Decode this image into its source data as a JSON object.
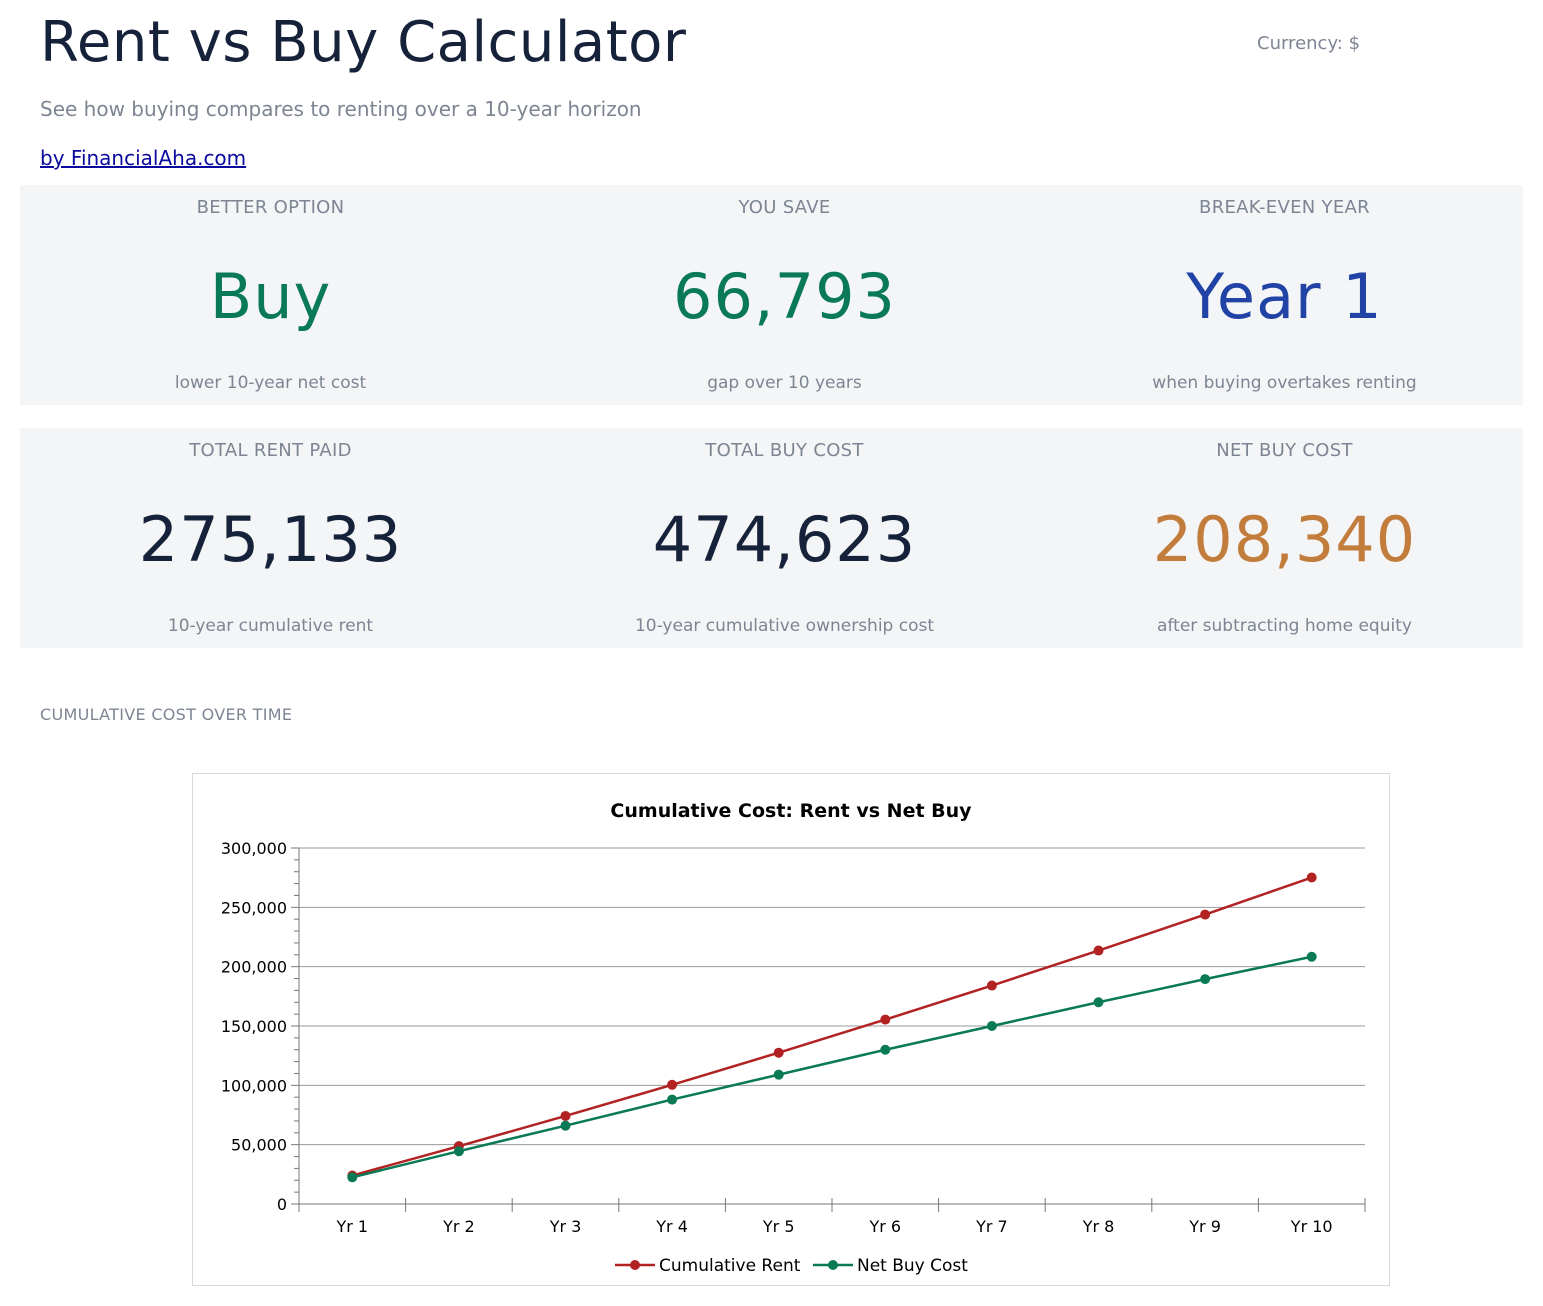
{
  "header": {
    "title": "Rent vs Buy Calculator",
    "currency": "Currency: $",
    "subtitle": "See how buying compares to renting over a 10-year horizon",
    "byline": "by FinancialAha.com"
  },
  "summary": [
    {
      "label": "BETTER OPTION",
      "value": "Buy",
      "note": "lower 10-year net cost",
      "color": "#0a7a56"
    },
    {
      "label": "YOU SAVE",
      "value": "66,793",
      "note": "gap over 10 years",
      "color": "#0a7a56"
    },
    {
      "label": "BREAK-EVEN YEAR",
      "value": "Year 1",
      "note": "when buying overtakes renting",
      "color": "#2243a6"
    }
  ],
  "totals": [
    {
      "label": "TOTAL RENT PAID",
      "value": "275,133",
      "note": "10-year cumulative rent",
      "color": "#16213a"
    },
    {
      "label": "TOTAL BUY COST",
      "value": "474,623",
      "note": "10-year cumulative ownership cost",
      "color": "#16213a"
    },
    {
      "label": "NET BUY COST",
      "value": "208,340",
      "note": "after subtracting home equity",
      "color": "#c27d3d"
    }
  ],
  "section_title": "CUMULATIVE COST OVER TIME",
  "chart_data": {
    "type": "line",
    "title": "Cumulative Cost: Rent vs Net Buy",
    "categories": [
      "Yr 1",
      "Yr 2",
      "Yr 3",
      "Yr 4",
      "Yr 5",
      "Yr 6",
      "Yr 7",
      "Yr 8",
      "Yr 9",
      "Yr 10"
    ],
    "ylim": [
      0,
      300000
    ],
    "yticks": [
      0,
      50000,
      100000,
      150000,
      200000,
      250000,
      300000
    ],
    "ytick_labels": [
      "0",
      "50,000",
      "100,000",
      "150,000",
      "200,000",
      "250,000",
      "300,000"
    ],
    "grid": true,
    "legend": "bottom",
    "series": [
      {
        "name": "Cumulative Rent",
        "color": "#b22222",
        "values": [
          24000,
          48720,
          74200,
          100450,
          127500,
          155400,
          184100,
          213600,
          243900,
          275133
        ]
      },
      {
        "name": "Net Buy Cost",
        "color": "#0a7a56",
        "values": [
          22500,
          44500,
          66000,
          88000,
          109000,
          130000,
          150000,
          170000,
          189500,
          208340
        ]
      }
    ]
  }
}
